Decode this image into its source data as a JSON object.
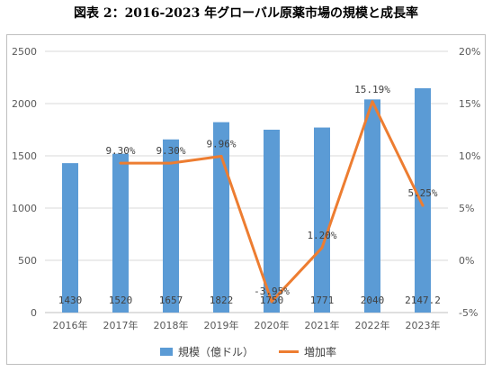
{
  "page": {
    "title": "図表 2：2016-2023 年グローバル原薬市場の規模と成長率"
  },
  "colors": {
    "bar": "#5b9bd5",
    "line": "#ed7d31",
    "grid": "#d9d9d9",
    "axis_text": "#595959"
  },
  "chart_data": {
    "type": "bar",
    "title": "図表 2：2016-2023 年グローバル原薬市場の規模と成長率",
    "categories": [
      "2016年",
      "2017年",
      "2018年",
      "2019年",
      "2020年",
      "2021年",
      "2022年",
      "2023年"
    ],
    "series": [
      {
        "name": "規模（億ドル）",
        "type": "bar",
        "axis": "left",
        "values": [
          1430,
          1520,
          1657,
          1822,
          1750,
          1771,
          2040,
          2147.2
        ],
        "labels": [
          "1430",
          "1520",
          "1657",
          "1822",
          "1750",
          "1771",
          "2040",
          "2147.2"
        ]
      },
      {
        "name": "増加率",
        "type": "line",
        "axis": "right",
        "values": [
          null,
          9.3,
          9.3,
          9.96,
          -3.95,
          1.2,
          15.19,
          5.25
        ],
        "labels": [
          "",
          "9.30%",
          "9.30%",
          "9.96%",
          "-3.95%",
          "1.20%",
          "15.19%",
          "5.25%"
        ]
      }
    ],
    "y_left": {
      "min": 0,
      "max": 2500,
      "ticks": [
        "0",
        "500",
        "1000",
        "1500",
        "2000",
        "2500"
      ]
    },
    "y_right": {
      "min": -5,
      "max": 20,
      "ticks": [
        "-5%",
        "0%",
        "5%",
        "10%",
        "15%",
        "20%"
      ]
    },
    "grid": true,
    "legend": "bottom"
  }
}
